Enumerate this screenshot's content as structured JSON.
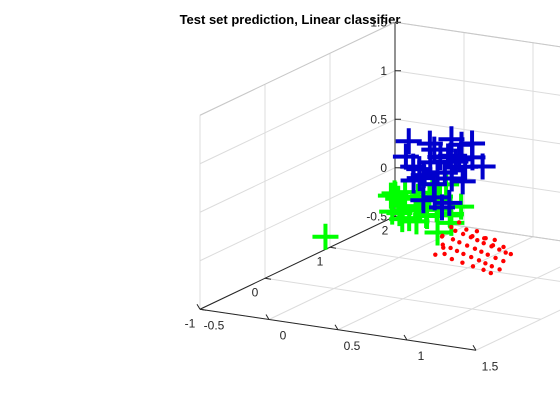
{
  "chart_data": {
    "type": "scatter3d",
    "title": "Test set prediction, Linear classifier",
    "xlabel": "",
    "ylabel": "",
    "zlabel": "",
    "xlim": [
      -0.5,
      1.5
    ],
    "ylim": [
      -1,
      2
    ],
    "zlim": [
      -0.5,
      1.5
    ],
    "x_ticks": [
      "-0.5",
      "0",
      "0.5",
      "1",
      "1.5"
    ],
    "y_ticks": [
      "-1",
      "0",
      "1",
      "2"
    ],
    "z_ticks": [
      "-0.5",
      "0",
      "0.5",
      "1",
      "1.5"
    ],
    "grid": true,
    "colors": {
      "green": "#00ff00",
      "blue": "#0000cc",
      "red": "#ff0000",
      "axis": "#262626",
      "grid": "#dcdcdc"
    },
    "series": [
      {
        "marker": "plus",
        "color": "#00ff00",
        "points": [
          [
            -0.58,
            1.1,
            -0.44
          ],
          [
            -0.2,
            1.3,
            0.0
          ],
          [
            -0.15,
            1.25,
            0.05
          ],
          [
            -0.1,
            1.2,
            0.02
          ],
          [
            -0.12,
            1.15,
            -0.1
          ],
          [
            -0.05,
            1.2,
            0.1
          ],
          [
            -0.02,
            1.1,
            -0.05
          ],
          [
            0.02,
            1.25,
            0.05
          ],
          [
            0.05,
            1.05,
            -0.1
          ],
          [
            0.08,
            1.2,
            0.12
          ],
          [
            0.1,
            1.1,
            0.0
          ],
          [
            0.12,
            1.0,
            0.05
          ],
          [
            0.15,
            1.15,
            0.1
          ],
          [
            0.18,
            1.05,
            -0.05
          ],
          [
            0.2,
            1.2,
            0.08
          ],
          [
            0.22,
            0.95,
            0.0
          ],
          [
            0.25,
            1.1,
            0.15
          ],
          [
            0.28,
            1.0,
            0.05
          ],
          [
            0.3,
            1.15,
            -0.05
          ],
          [
            0.32,
            0.9,
            0.1
          ],
          [
            0.35,
            1.05,
            0.0
          ],
          [
            0.4,
            0.95,
            0.05
          ],
          [
            0.45,
            0.85,
            0.0
          ],
          [
            0.2,
            1.3,
            0.2
          ],
          [
            0.1,
            1.3,
            0.18
          ],
          [
            0.0,
            1.05,
            -0.12
          ],
          [
            0.15,
            0.95,
            -0.08
          ],
          [
            0.25,
            1.25,
            -0.08
          ],
          [
            0.35,
            0.85,
            -0.12
          ],
          [
            0.45,
            1.0,
            0.12
          ],
          [
            0.05,
            0.9,
            0.0
          ],
          [
            -0.05,
            1.05,
            0.12
          ],
          [
            0.3,
            0.95,
            0.18
          ],
          [
            0.2,
            0.85,
            0.12
          ]
        ]
      },
      {
        "marker": "plus",
        "color": "#0000cc",
        "points": [
          [
            0.0,
            1.15,
            0.65
          ],
          [
            0.05,
            1.0,
            0.55
          ],
          [
            0.1,
            1.1,
            0.4
          ],
          [
            0.15,
            0.9,
            0.5
          ],
          [
            0.2,
            1.05,
            0.7
          ],
          [
            0.25,
            0.85,
            0.45
          ],
          [
            0.3,
            1.0,
            0.6
          ],
          [
            0.35,
            0.8,
            0.75
          ],
          [
            0.4,
            0.95,
            0.65
          ],
          [
            0.45,
            0.75,
            0.55
          ],
          [
            0.5,
            0.9,
            0.8
          ],
          [
            0.55,
            0.7,
            0.7
          ],
          [
            0.6,
            0.85,
            0.85
          ],
          [
            0.65,
            0.75,
            0.75
          ],
          [
            0.7,
            0.8,
            0.65
          ],
          [
            0.3,
            0.9,
            0.35
          ],
          [
            0.4,
            0.7,
            0.3
          ],
          [
            0.5,
            0.6,
            0.25
          ],
          [
            0.6,
            0.5,
            0.35
          ],
          [
            0.2,
            0.8,
            0.4
          ],
          [
            0.15,
            1.0,
            0.35
          ],
          [
            0.25,
            0.95,
            0.55
          ],
          [
            0.35,
            0.85,
            0.5
          ],
          [
            0.45,
            0.8,
            0.7
          ],
          [
            0.55,
            0.85,
            0.6
          ],
          [
            0.28,
            0.78,
            0.22
          ],
          [
            0.5,
            0.75,
            0.5
          ],
          [
            0.6,
            0.65,
            0.75
          ],
          [
            0.38,
            1.0,
            0.8
          ],
          [
            0.65,
            0.6,
            0.55
          ]
        ]
      },
      {
        "marker": "dot",
        "color": "#ff0000",
        "points": [
          [
            0.5,
            0.6,
            -0.05
          ],
          [
            0.55,
            0.5,
            0.0
          ],
          [
            0.6,
            0.4,
            -0.05
          ],
          [
            0.62,
            0.55,
            0.05
          ],
          [
            0.65,
            0.45,
            0.0
          ],
          [
            0.68,
            0.35,
            -0.05
          ],
          [
            0.7,
            0.5,
            0.05
          ],
          [
            0.72,
            0.4,
            0.0
          ],
          [
            0.75,
            0.3,
            -0.05
          ],
          [
            0.78,
            0.45,
            0.05
          ],
          [
            0.8,
            0.35,
            0.0
          ],
          [
            0.82,
            0.25,
            -0.05
          ],
          [
            0.85,
            0.4,
            0.05
          ],
          [
            0.88,
            0.3,
            0.0
          ],
          [
            0.9,
            0.2,
            -0.05
          ],
          [
            0.92,
            0.35,
            0.05
          ],
          [
            0.95,
            0.25,
            0.0
          ],
          [
            0.98,
            0.15,
            -0.05
          ],
          [
            1.0,
            0.3,
            0.05
          ],
          [
            1.02,
            0.2,
            0.0
          ],
          [
            1.05,
            0.1,
            -0.05
          ],
          [
            1.08,
            0.25,
            0.05
          ],
          [
            1.1,
            0.15,
            0.0
          ],
          [
            1.12,
            0.05,
            -0.05
          ],
          [
            1.15,
            0.2,
            0.05
          ],
          [
            1.18,
            0.1,
            0.0
          ],
          [
            1.2,
            0.0,
            -0.05
          ],
          [
            0.6,
            0.65,
            0.1
          ],
          [
            0.7,
            0.55,
            0.08
          ],
          [
            0.8,
            0.5,
            0.1
          ],
          [
            0.9,
            0.4,
            0.08
          ],
          [
            1.0,
            0.35,
            0.1
          ],
          [
            0.58,
            0.45,
            -0.1
          ],
          [
            0.66,
            0.3,
            -0.1
          ],
          [
            0.76,
            0.2,
            -0.1
          ],
          [
            0.86,
            0.15,
            -0.1
          ],
          [
            0.96,
            0.1,
            -0.1
          ],
          [
            1.06,
            0.05,
            -0.1
          ],
          [
            1.16,
            -0.05,
            -0.08
          ],
          [
            0.72,
            0.6,
            0.0
          ],
          [
            0.84,
            0.55,
            0.02
          ],
          [
            0.94,
            0.45,
            0.0
          ],
          [
            1.04,
            0.4,
            0.02
          ],
          [
            1.14,
            0.3,
            0.0
          ],
          [
            0.52,
            0.7,
            0.02
          ],
          [
            0.64,
            0.2,
            -0.08
          ]
        ]
      }
    ]
  }
}
